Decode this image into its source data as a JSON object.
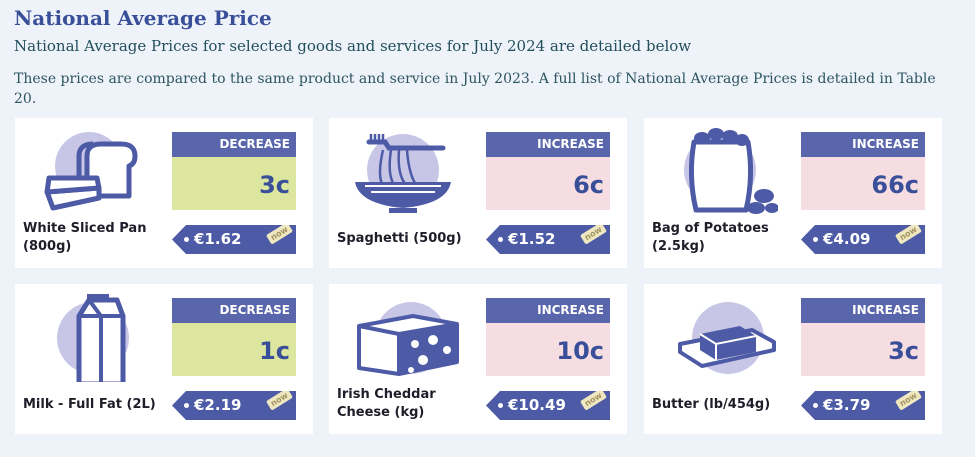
{
  "header": {
    "title": "National Average Price",
    "subtitle": "National Average Prices for selected goods and services for July 2024 are detailed below",
    "description": "These prices are compared to the same product and service in July 2023. A full list of National Average Prices is detailed in Table 20."
  },
  "colors": {
    "accent": "#5a66ab",
    "decrease_bg": "#dde69e",
    "increase_bg": "#f6dde1",
    "title": "#3a4f9a"
  },
  "products": [
    {
      "name": "White Sliced Pan (800g)",
      "change_label": "DECREASE",
      "change_value": "3c",
      "price": "€1.62",
      "badge": "now",
      "icon": "bread-icon"
    },
    {
      "name": "Spaghetti (500g)",
      "change_label": "INCREASE",
      "change_value": "6c",
      "price": "€1.52",
      "badge": "now",
      "icon": "spaghetti-icon"
    },
    {
      "name": "Bag of Potatoes (2.5kg)",
      "change_label": "INCREASE",
      "change_value": "66c",
      "price": "€4.09",
      "badge": "now",
      "icon": "potato-bag-icon"
    },
    {
      "name": "Milk - Full Fat (2L)",
      "change_label": "DECREASE",
      "change_value": "1c",
      "price": "€2.19",
      "badge": "now",
      "icon": "milk-carton-icon"
    },
    {
      "name": "Irish Cheddar Cheese (kg)",
      "change_label": "INCREASE",
      "change_value": "10c",
      "price": "€10.49",
      "badge": "now",
      "icon": "cheese-icon"
    },
    {
      "name": "Butter (lb/454g)",
      "change_label": "INCREASE",
      "change_value": "3c",
      "price": "€3.79",
      "badge": "now",
      "icon": "butter-icon"
    }
  ]
}
